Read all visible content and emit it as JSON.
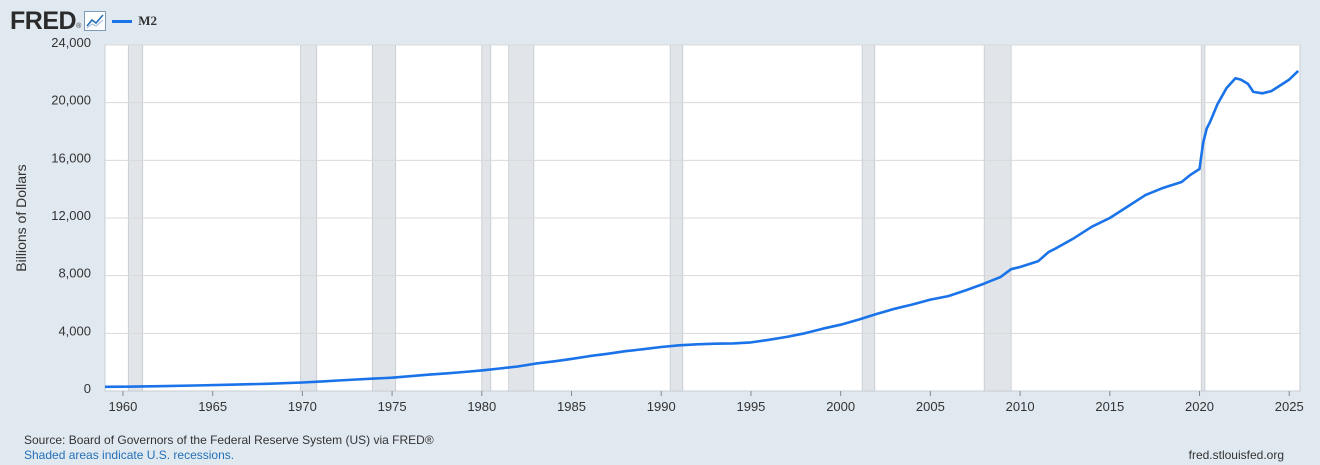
{
  "header": {
    "logo_text": "FRED",
    "logo_mark": "®",
    "logo_icon": "line-chart-icon",
    "legend_label": "M2"
  },
  "footer": {
    "source": "Source: Board of Governors of the Federal Reserve System (US) via FRED®",
    "recession_note": "Shaded areas indicate U.S. recessions.",
    "credit": "fred.stlouisfed.org"
  },
  "colors": {
    "background": "#e1e9f0",
    "plot_background": "#ffffff",
    "line": "#1a73e8",
    "recession": "#e1e5e9",
    "grid": "#d9d9d9"
  },
  "chart_data": {
    "type": "line",
    "title": "",
    "xlabel": "",
    "ylabel": "Billions of Dollars",
    "xlim": [
      1959.0,
      2025.6
    ],
    "ylim": [
      0,
      24000
    ],
    "grid": true,
    "legend_position": "top-left",
    "x_ticks": [
      1960,
      1965,
      1970,
      1975,
      1980,
      1985,
      1990,
      1995,
      2000,
      2005,
      2010,
      2015,
      2020,
      2025
    ],
    "y_ticks": [
      0,
      4000,
      8000,
      12000,
      16000,
      20000,
      24000
    ],
    "y_tick_labels": [
      "0",
      "4,000",
      "8,000",
      "12,000",
      "16,000",
      "20,000",
      "24,000"
    ],
    "recessions": [
      [
        1960.3,
        1961.1
      ],
      [
        1969.9,
        1970.8
      ],
      [
        1973.9,
        1975.2
      ],
      [
        1980.0,
        1980.5
      ],
      [
        1981.5,
        1982.9
      ],
      [
        1990.5,
        1991.2
      ],
      [
        2001.2,
        2001.9
      ],
      [
        2008.0,
        2009.5
      ],
      [
        2020.1,
        2020.3
      ]
    ],
    "series": [
      {
        "name": "M2",
        "x": [
          1959.0,
          1960.0,
          1962.0,
          1964.0,
          1966.0,
          1968.0,
          1970.0,
          1971.0,
          1972.0,
          1973.0,
          1974.0,
          1975.0,
          1976.0,
          1977.0,
          1978.0,
          1979.0,
          1980.0,
          1981.0,
          1982.0,
          1983.0,
          1984.0,
          1985.0,
          1986.0,
          1987.0,
          1988.0,
          1989.0,
          1990.0,
          1991.0,
          1992.0,
          1993.0,
          1994.0,
          1995.0,
          1996.0,
          1997.0,
          1998.0,
          1999.0,
          2000.0,
          2001.0,
          2002.0,
          2003.0,
          2004.0,
          2005.0,
          2006.0,
          2007.0,
          2008.0,
          2008.9,
          2009.5,
          2010.0,
          2011.0,
          2011.6,
          2012.0,
          2013.0,
          2014.0,
          2015.0,
          2016.0,
          2017.0,
          2018.0,
          2019.0,
          2019.5,
          2020.0,
          2020.2,
          2020.4,
          2020.6,
          2021.0,
          2021.5,
          2022.0,
          2022.3,
          2022.7,
          2023.0,
          2023.5,
          2024.0,
          2024.5,
          2025.0,
          2025.5
        ],
        "values": [
          290,
          300,
          330,
          380,
          440,
          500,
          590,
          650,
          730,
          800,
          860,
          920,
          1030,
          1130,
          1220,
          1320,
          1430,
          1560,
          1700,
          1900,
          2050,
          2230,
          2420,
          2580,
          2760,
          2900,
          3050,
          3170,
          3240,
          3280,
          3300,
          3370,
          3550,
          3750,
          4000,
          4320,
          4600,
          4950,
          5340,
          5700,
          6000,
          6340,
          6580,
          7000,
          7450,
          7900,
          8450,
          8600,
          9000,
          9650,
          9900,
          10600,
          11400,
          12000,
          12800,
          13600,
          14100,
          14500,
          15000,
          15400,
          17200,
          18200,
          18700,
          19900,
          21000,
          21700,
          21600,
          21300,
          20750,
          20650,
          20800,
          21200,
          21600,
          22200
        ]
      }
    ]
  }
}
